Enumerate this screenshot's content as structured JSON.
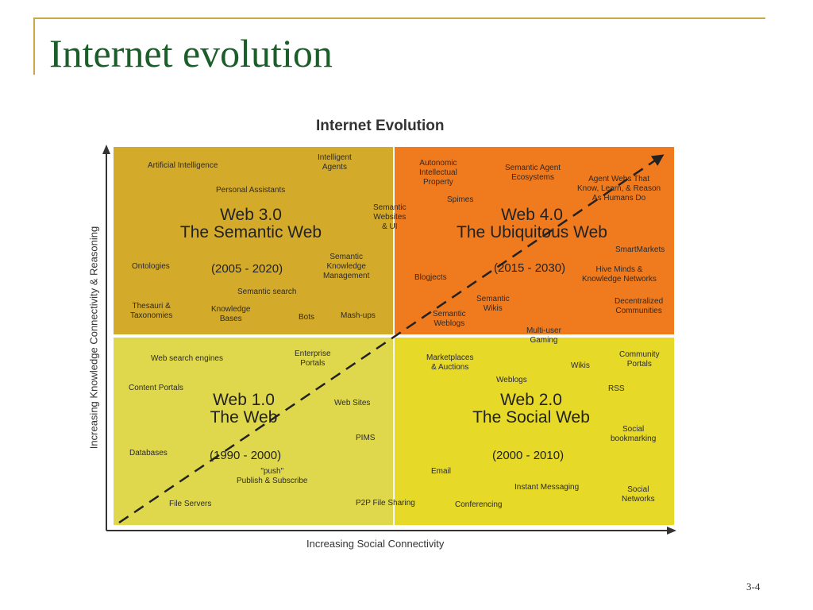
{
  "slide": {
    "title": "Internet evolution",
    "page_number": "3-4"
  },
  "diagram": {
    "title": "Internet Evolution",
    "x_axis_label": "Increasing Social Connectivity",
    "y_axis_label": "Increasing Knowledge Connectivity & Reasoning",
    "quadrants": {
      "web3": {
        "name_line1": "Web 3.0",
        "name_line2": "The Semantic Web",
        "years": "(2005 - 2020)",
        "color": "#d4aa2a",
        "items": {
          "artificial_intelligence": "Artificial Intelligence",
          "intelligent_agents": "Intelligent\nAgents",
          "personal_assistants": "Personal Assistants",
          "ontologies": "Ontologies",
          "semantic_km": "Semantic\nKnowledge\nManagement",
          "semantic_search": "Semantic search",
          "thesauri": "Thesauri &\nTaxonomies",
          "knowledge_bases": "Knowledge\nBases",
          "bots": "Bots",
          "mashups": "Mash-ups",
          "semantic_websites": "Semantic\nWebsites\n& UI"
        }
      },
      "web4": {
        "name_line1": "Web 4.0",
        "name_line2": "The Ubiquitous Web",
        "years": "(2015 - 2030)",
        "color": "#f07a1e",
        "items": {
          "autonomic": "Autonomic\nIntellectual\nProperty",
          "semantic_agent": "Semantic Agent\nEcosystems",
          "agent_webs": "Agent Webs That\nKnow, Learn, & Reason\nAs Humans Do",
          "spimes": "Spimes",
          "smartmarkets": "SmartMarkets",
          "blogjects": "Blogjects",
          "hive_minds": "Hive Minds &\nKnowledge Networks",
          "semantic_wikis": "Semantic\nWikis",
          "decentralized": "Decentralized\nCommunities",
          "semantic_weblogs": "Semantic\nWeblogs",
          "multi_user": "Multi-user\nGaming"
        }
      },
      "web1": {
        "name_line1": "Web 1.0",
        "name_line2": "The Web",
        "years": "(1990 - 2000)",
        "color": "#dfd84c",
        "items": {
          "web_search": "Web search engines",
          "enterprise_portals": "Enterprise\nPortals",
          "content_portals": "Content Portals",
          "web_sites": "Web Sites",
          "pims": "PIMS",
          "databases": "Databases",
          "push": "\"push\"\nPublish & Subscribe",
          "file_servers": "File Servers",
          "p2p": "P2P File Sharing"
        }
      },
      "web2": {
        "name_line1": "Web 2.0",
        "name_line2": "The Social Web",
        "years": "(2000 - 2010)",
        "color": "#e6d928",
        "items": {
          "marketplaces": "Marketplaces\n& Auctions",
          "wikis": "Wikis",
          "community_portals": "Community\nPortals",
          "weblogs": "Weblogs",
          "rss": "RSS",
          "social_bookmarking": "Social\nbookmarking",
          "email": "Email",
          "instant_messaging": "Instant Messaging",
          "conferencing": "Conferencing",
          "social_networks": "Social\nNetworks"
        }
      }
    }
  }
}
